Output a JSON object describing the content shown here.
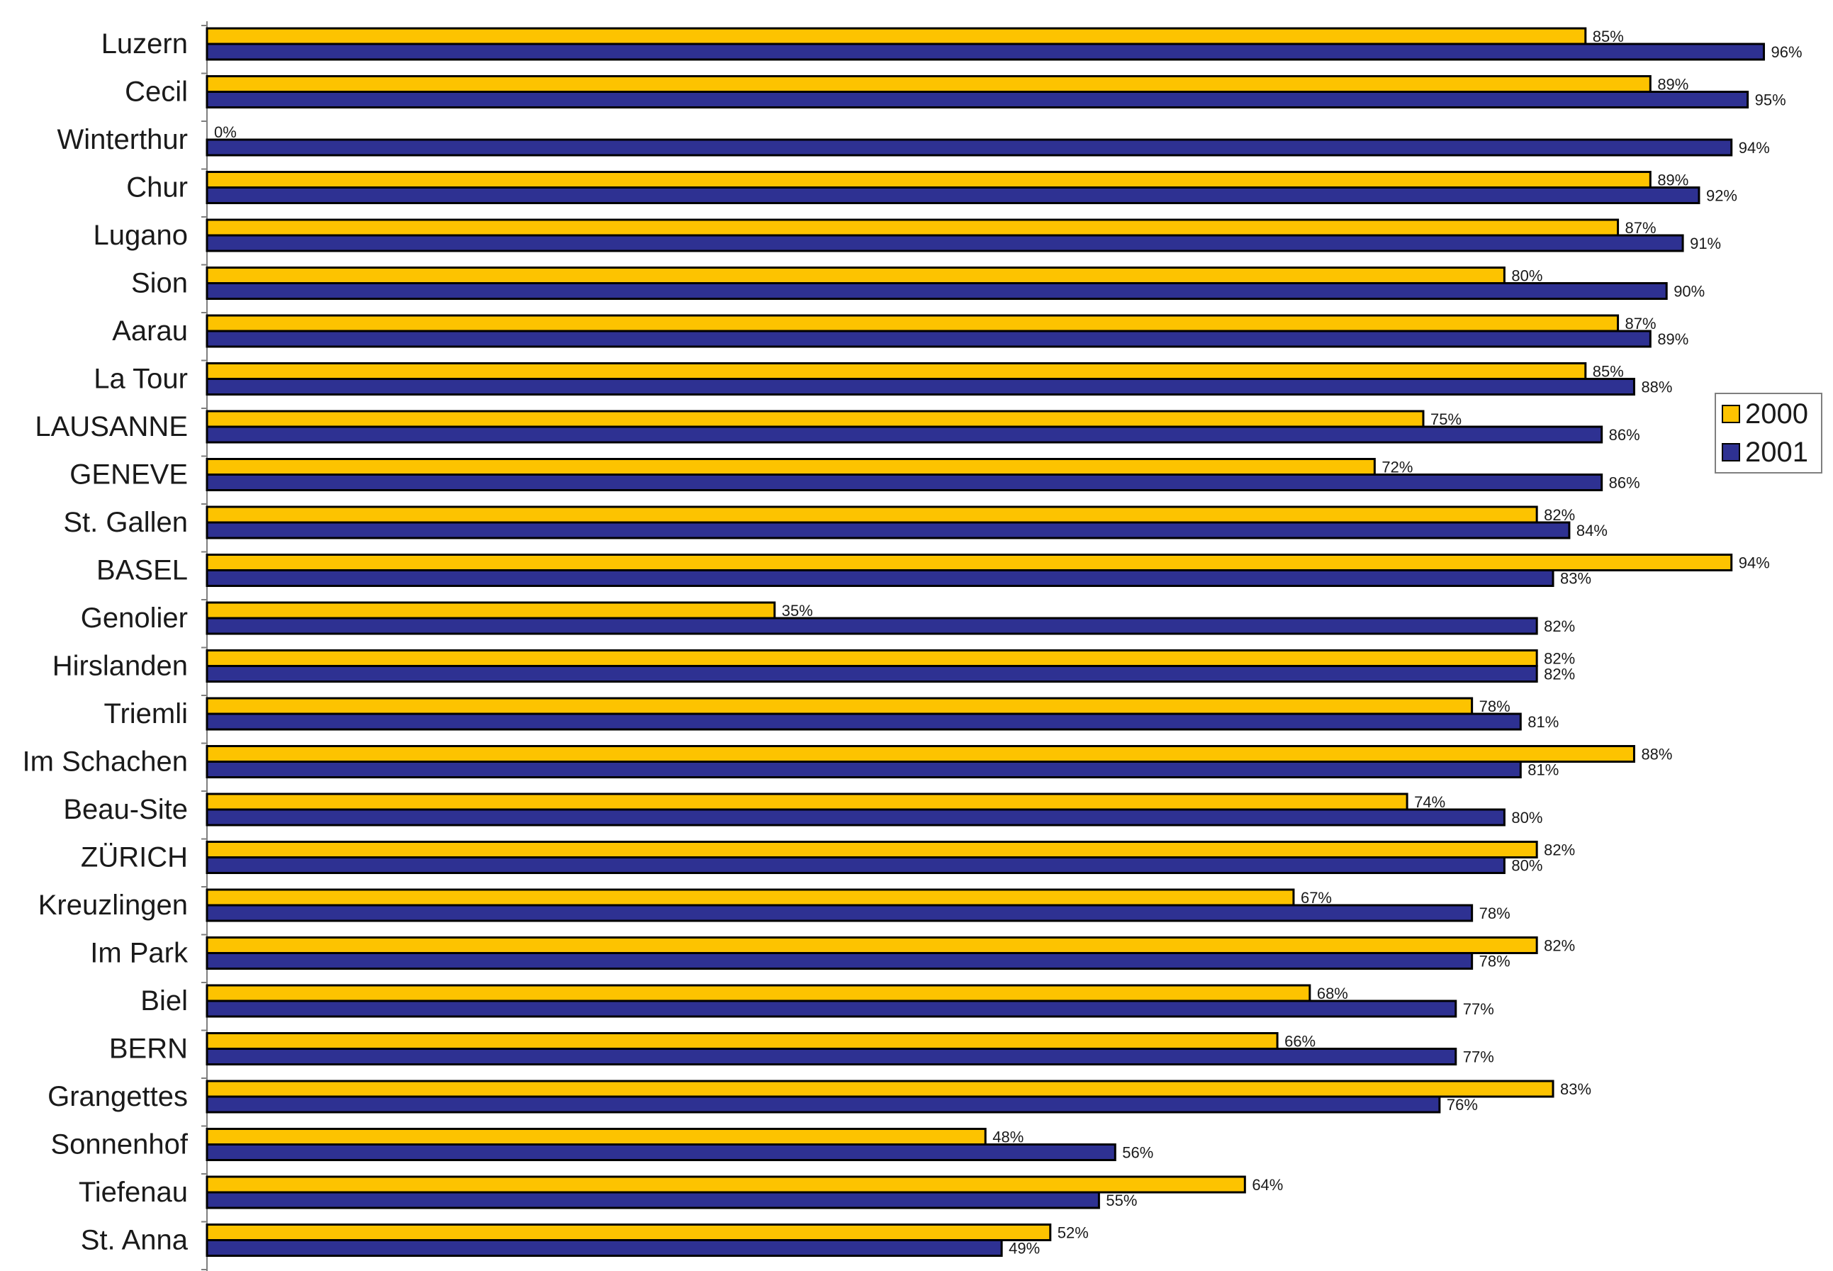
{
  "chart_data": {
    "type": "bar",
    "orientation": "horizontal",
    "title": "",
    "xlabel": "",
    "ylabel": "",
    "xlim": [
      0,
      100
    ],
    "grid": false,
    "legend_position": "right",
    "categories": [
      "Luzern",
      "Cecil",
      "Winterthur",
      "Chur",
      "Lugano",
      "Sion",
      "Aarau",
      "La Tour",
      "LAUSANNE",
      "GENEVE",
      "St. Gallen",
      "BASEL",
      "Genolier",
      "Hirslanden",
      "Triemli",
      "Im Schachen",
      "Beau-Site",
      "ZÜRICH",
      "Kreuzlingen",
      "Im Park",
      "Biel",
      "BERN",
      "Grangettes",
      "Sonnenhof",
      "Tiefenau",
      "St. Anna"
    ],
    "series": [
      {
        "name": "2000",
        "color": "#fdc300",
        "values": [
          85,
          89,
          0,
          89,
          87,
          80,
          87,
          85,
          75,
          72,
          82,
          94,
          35,
          82,
          78,
          88,
          74,
          82,
          67,
          82,
          68,
          66,
          83,
          48,
          64,
          52
        ]
      },
      {
        "name": "2001",
        "color": "#2e3192",
        "values": [
          96,
          95,
          94,
          92,
          91,
          90,
          89,
          88,
          86,
          86,
          84,
          83,
          82,
          82,
          81,
          81,
          80,
          80,
          78,
          78,
          77,
          77,
          76,
          56,
          55,
          49
        ]
      }
    ],
    "value_suffix": "%"
  }
}
